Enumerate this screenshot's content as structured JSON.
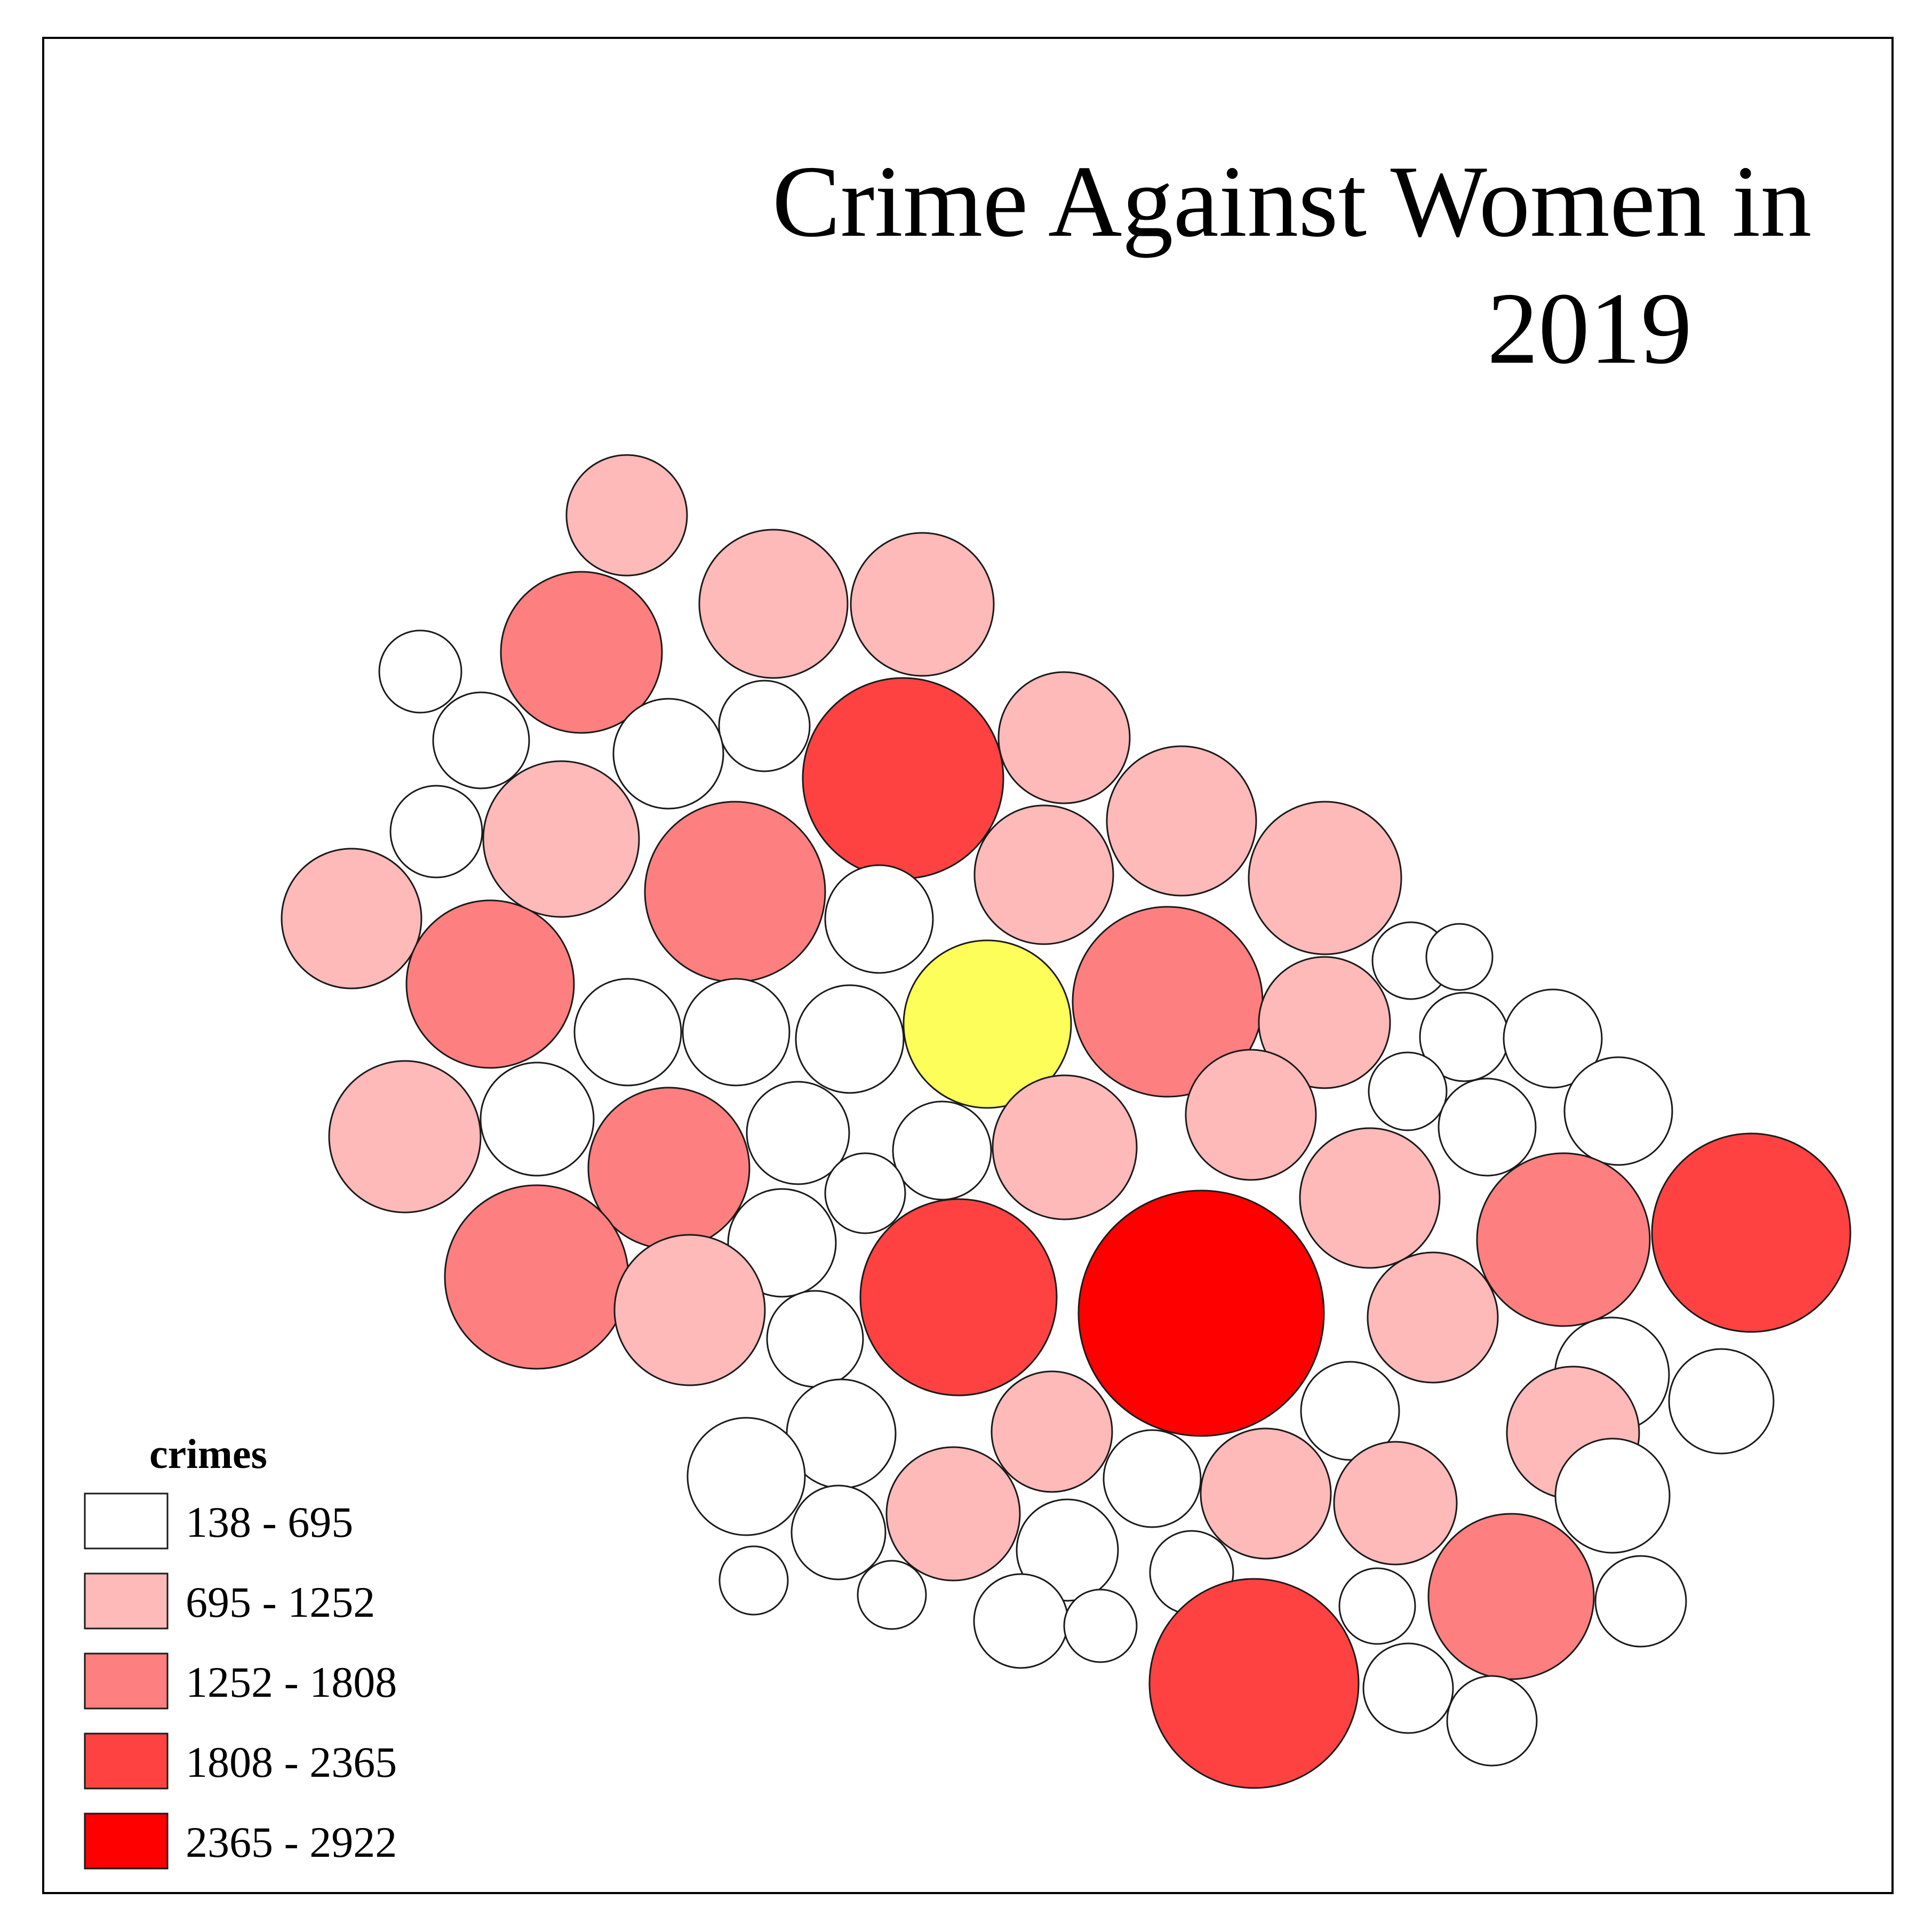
{
  "map": {
    "title_line1": "Crime Against Women in",
    "title_line2": "2019",
    "legend": {
      "heading": "crimes",
      "items": [
        {
          "label": "138 - 695",
          "color": "#ffffff"
        },
        {
          "label": "695 - 1252",
          "color": "#feb9b9"
        },
        {
          "label": "1252 - 1808",
          "color": "#fe7f7f"
        },
        {
          "label": "1808 - 2365",
          "color": "#fe4242"
        },
        {
          "label": "2365 - 2922",
          "color": "#fe0000"
        }
      ]
    },
    "highlight_color": "#fefe5a"
  }
}
